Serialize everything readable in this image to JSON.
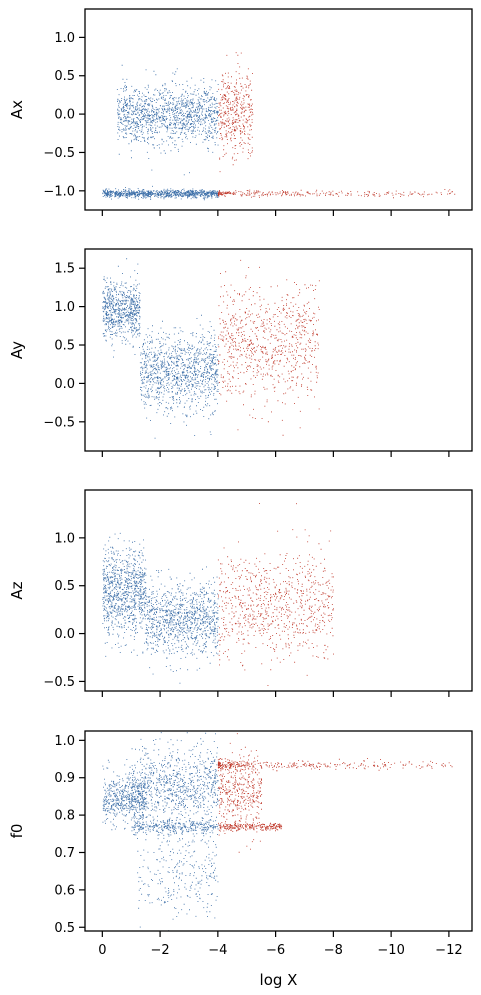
{
  "chart_data": [
    {
      "type": "scatter",
      "ylabel": "Ax",
      "xlabel": "",
      "xlim": [
        0.6,
        -12.8
      ],
      "ylim": [
        -1.25,
        1.37
      ],
      "xticks": [
        0,
        -2,
        -4,
        -6,
        -8,
        -10,
        -12
      ],
      "xtick_labels_shown": false,
      "yticks": [
        1.0,
        0.5,
        0.0,
        -0.5,
        -1.0
      ],
      "ytick_labels": [
        "1.0",
        "0.5",
        "0.0",
        "−0.5",
        "−1.0"
      ],
      "series": [
        {
          "color": "#3b6ea8",
          "x_range": [
            0,
            -4
          ],
          "clusters": [
            {
              "x": [
                -0.5,
                -4.0
              ],
              "y_center": 0.0,
              "y_spread": 0.6,
              "count": 1300
            },
            {
              "x": [
                0.0,
                -4.0
              ],
              "y_center": -1.03,
              "y_spread": 0.08,
              "count": 900
            }
          ]
        },
        {
          "color": "#c0392b",
          "x_range": [
            -4,
            -12.2
          ],
          "clusters": [
            {
              "x": [
                -4.0,
                -5.2
              ],
              "y_center": 0.0,
              "y_spread": 0.9,
              "count": 420
            },
            {
              "x": [
                -4.0,
                -12.2
              ],
              "y_center": -1.03,
              "y_spread": 0.06,
              "count": 300
            }
          ]
        }
      ],
      "grid": false
    },
    {
      "type": "scatter",
      "ylabel": "Ay",
      "xlabel": "",
      "xlim": [
        0.6,
        -12.8
      ],
      "ylim": [
        -0.88,
        1.75
      ],
      "xticks": [
        0,
        -2,
        -4,
        -6,
        -8,
        -10,
        -12
      ],
      "xtick_labels_shown": false,
      "yticks": [
        1.5,
        1.0,
        0.5,
        0.0,
        -0.5
      ],
      "ytick_labels": [
        "1.5",
        "1.0",
        "0.5",
        "0.0",
        "−0.5"
      ],
      "series": [
        {
          "color": "#3b6ea8",
          "x_range": [
            0,
            -4
          ],
          "clusters": [
            {
              "x": [
                0.0,
                -1.3
              ],
              "y_center": 0.95,
              "y_spread": 0.6,
              "count": 700
            },
            {
              "x": [
                -1.3,
                -4.0
              ],
              "y_center": 0.15,
              "y_spread": 0.8,
              "count": 1100
            }
          ]
        },
        {
          "color": "#c0392b",
          "x_range": [
            -4,
            -12.2
          ],
          "clusters": [
            {
              "x": [
                -4.0,
                -7.5
              ],
              "y_center": 0.5,
              "y_spread": 1.2,
              "count": 800
            }
          ]
        }
      ],
      "grid": false
    },
    {
      "type": "scatter",
      "ylabel": "Az",
      "xlabel": "",
      "xlim": [
        0.6,
        -12.8
      ],
      "ylim": [
        -0.6,
        1.5
      ],
      "xticks": [
        0,
        -2,
        -4,
        -6,
        -8,
        -10,
        -12
      ],
      "xtick_labels_shown": false,
      "yticks": [
        1.0,
        0.5,
        0.0,
        -0.5
      ],
      "ytick_labels": [
        "1.0",
        "0.5",
        "0.0",
        "−0.5"
      ],
      "series": [
        {
          "color": "#3b6ea8",
          "x_range": [
            0,
            -4
          ],
          "clusters": [
            {
              "x": [
                0.0,
                -1.5
              ],
              "y_center": 0.45,
              "y_spread": 0.7,
              "count": 900
            },
            {
              "x": [
                -1.5,
                -4.0
              ],
              "y_center": 0.15,
              "y_spread": 0.6,
              "count": 1000
            }
          ]
        },
        {
          "color": "#c0392b",
          "x_range": [
            -4,
            -12.2
          ],
          "clusters": [
            {
              "x": [
                -4.0,
                -8.0
              ],
              "y_center": 0.3,
              "y_spread": 0.9,
              "count": 800
            }
          ]
        }
      ],
      "grid": false
    },
    {
      "type": "scatter",
      "ylabel": "f0",
      "xlabel": "log X",
      "xlim": [
        0.6,
        -12.8
      ],
      "ylim": [
        0.49,
        1.025
      ],
      "xticks": [
        0,
        -2,
        -4,
        -6,
        -8,
        -10,
        -12
      ],
      "xtick_labels": [
        "0",
        "−2",
        "−4",
        "−6",
        "−8",
        "−10",
        "−12"
      ],
      "xtick_labels_shown": true,
      "yticks": [
        1.0,
        0.9,
        0.8,
        0.7,
        0.6,
        0.5
      ],
      "ytick_labels": [
        "1.0",
        "0.9",
        "0.8",
        "0.7",
        "0.6",
        "0.5"
      ],
      "series": [
        {
          "color": "#3b6ea8",
          "x_range": [
            0,
            -4
          ],
          "clusters": [
            {
              "x": [
                0.0,
                -1.5
              ],
              "y_center": 0.845,
              "y_spread": 0.1,
              "count": 500
            },
            {
              "x": [
                -1.0,
                -4.0
              ],
              "y_center": 0.88,
              "y_spread": 0.16,
              "count": 900
            },
            {
              "x": [
                -1.0,
                -4.0
              ],
              "y_center": 0.77,
              "y_spread": 0.03,
              "count": 300
            },
            {
              "x": [
                -1.2,
                -4.0
              ],
              "y_center": 0.65,
              "y_spread": 0.22,
              "count": 300
            }
          ]
        },
        {
          "color": "#c0392b",
          "x_range": [
            -4,
            -12.2
          ],
          "clusters": [
            {
              "x": [
                -4.0,
                -12.2
              ],
              "y_center": 0.935,
              "y_spread": 0.02,
              "count": 350
            },
            {
              "x": [
                -4.0,
                -6.2
              ],
              "y_center": 0.77,
              "y_spread": 0.015,
              "count": 250
            },
            {
              "x": [
                -4.0,
                -5.5
              ],
              "y_center": 0.86,
              "y_spread": 0.16,
              "count": 400
            }
          ]
        }
      ],
      "grid": false
    }
  ]
}
